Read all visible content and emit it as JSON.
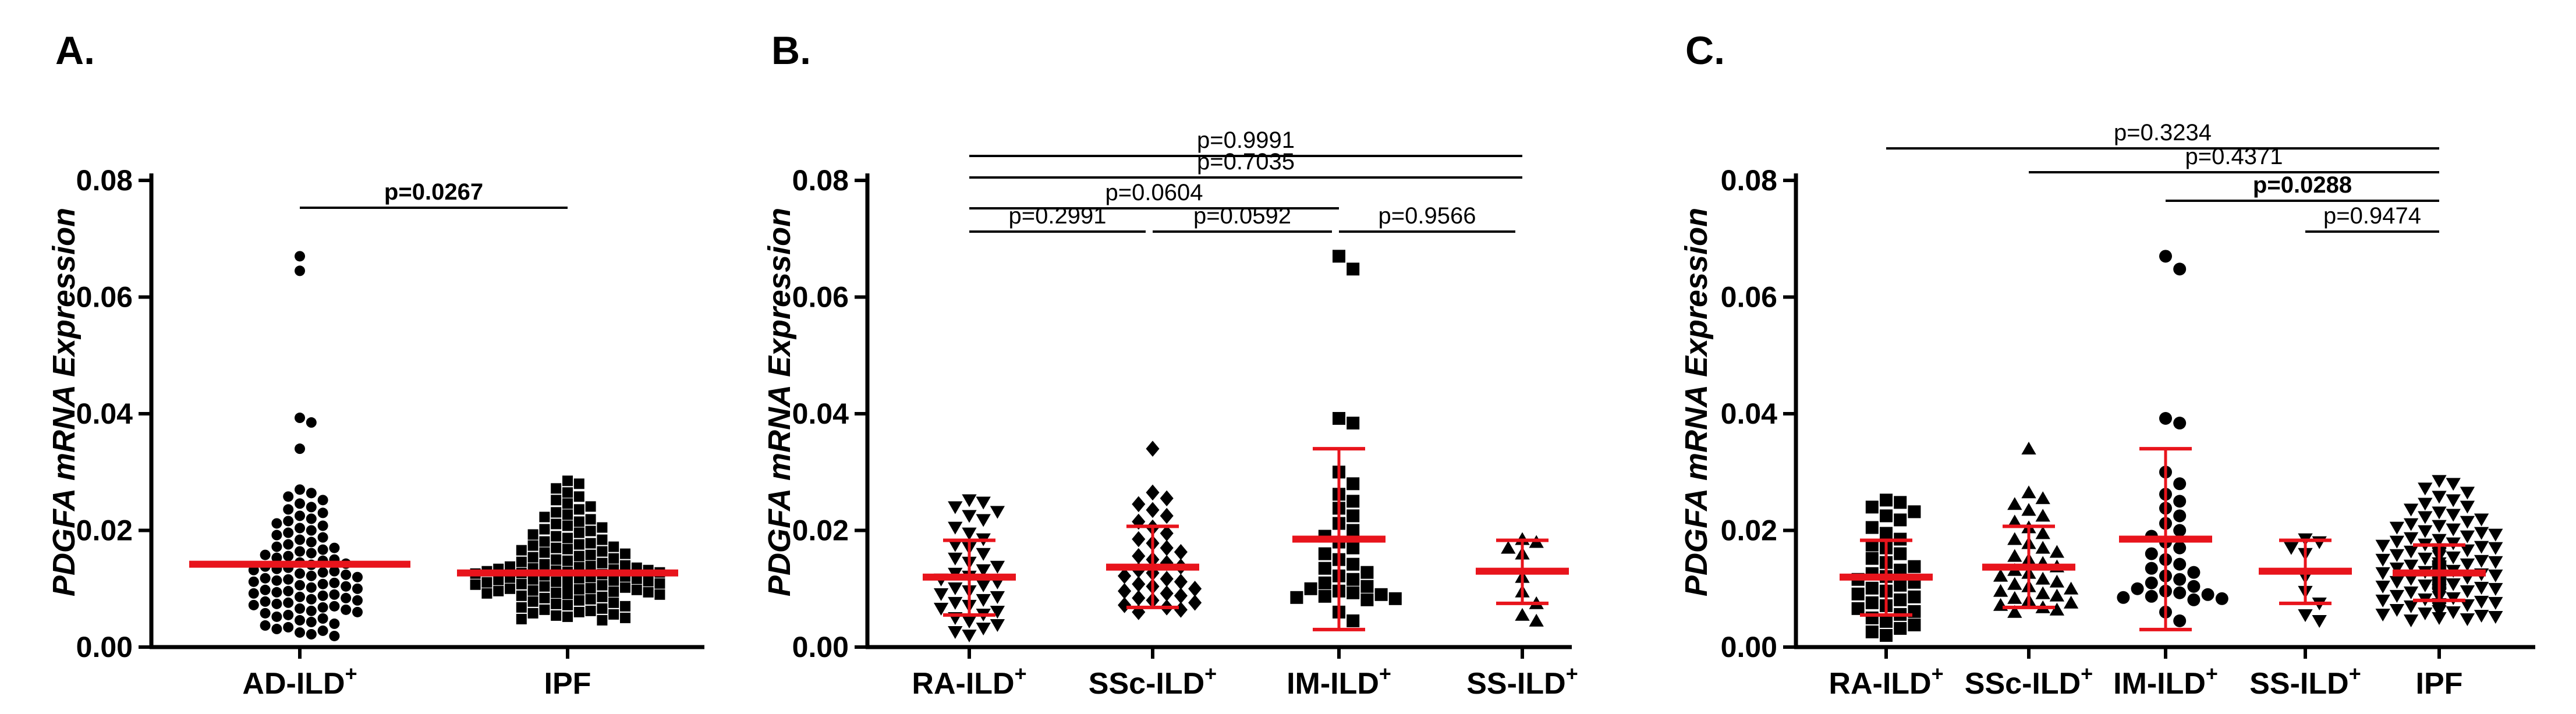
{
  "chart_data": [
    {
      "panel_label": "A.",
      "type": "scatter",
      "ylabel": "PDGFA mRNA Expression",
      "ylim": [
        0,
        0.08
      ],
      "yticks": [
        "0.00",
        "0.02",
        "0.04",
        "0.06",
        "0.08"
      ],
      "categories": [
        {
          "label": "AD-ILD",
          "sup": "+"
        },
        {
          "label": "IPF",
          "sup": ""
        }
      ],
      "series": [
        {
          "marker": "circle",
          "mean": 0.0142,
          "sd_low": null,
          "sd_high": null,
          "points": [
            0.067,
            0.0645,
            0.0393,
            0.0385,
            0.034,
            0.027,
            0.0264,
            0.0258,
            0.0252,
            0.0246,
            0.024,
            0.0236,
            0.023,
            0.0225,
            0.022,
            0.0216,
            0.0212,
            0.0208,
            0.0204,
            0.02,
            0.0196,
            0.0192,
            0.0188,
            0.0184,
            0.018,
            0.0176,
            0.0172,
            0.017,
            0.0167,
            0.0164,
            0.0161,
            0.0158,
            0.0156,
            0.0153,
            0.015,
            0.0148,
            0.0145,
            0.0143,
            0.0141,
            0.0138,
            0.0136,
            0.0134,
            0.0132,
            0.013,
            0.0128,
            0.0126,
            0.0124,
            0.0122,
            0.012,
            0.0118,
            0.0116,
            0.0114,
            0.0112,
            0.011,
            0.0108,
            0.0106,
            0.0104,
            0.0102,
            0.01,
            0.0098,
            0.0096,
            0.0094,
            0.0092,
            0.009,
            0.0088,
            0.0086,
            0.0084,
            0.0082,
            0.008,
            0.0078,
            0.0076,
            0.0074,
            0.0072,
            0.007,
            0.0068,
            0.0066,
            0.0064,
            0.0062,
            0.006,
            0.0058,
            0.0055,
            0.0052,
            0.0049,
            0.0046,
            0.0043,
            0.004,
            0.0037,
            0.0034,
            0.0031,
            0.0028,
            0.0025,
            0.0022,
            0.0019
          ]
        },
        {
          "marker": "square",
          "mean": 0.0127,
          "sd_low": null,
          "sd_high": null,
          "points": [
            0.0285,
            0.028,
            0.0272,
            0.0265,
            0.0258,
            0.0252,
            0.0246,
            0.0241,
            0.0236,
            0.0231,
            0.0227,
            0.0223,
            0.0219,
            0.0215,
            0.0211,
            0.0208,
            0.0205,
            0.0202,
            0.0199,
            0.0196,
            0.0193,
            0.019,
            0.0187,
            0.0184,
            0.0181,
            0.0178,
            0.0176,
            0.0174,
            0.0172,
            0.017,
            0.0168,
            0.0166,
            0.0164,
            0.0162,
            0.016,
            0.0158,
            0.0156,
            0.0154,
            0.0152,
            0.015,
            0.0148,
            0.0146,
            0.0144,
            0.0142,
            0.014,
            0.0139,
            0.0138,
            0.0137,
            0.0136,
            0.0135,
            0.0134,
            0.0133,
            0.0132,
            0.0131,
            0.013,
            0.0129,
            0.0128,
            0.0127,
            0.0126,
            0.0125,
            0.0124,
            0.0123,
            0.0122,
            0.0121,
            0.012,
            0.0119,
            0.0118,
            0.0117,
            0.0116,
            0.0115,
            0.0114,
            0.0113,
            0.0112,
            0.0111,
            0.011,
            0.0109,
            0.0108,
            0.0107,
            0.0106,
            0.0105,
            0.0104,
            0.0103,
            0.0102,
            0.0101,
            0.01,
            0.0099,
            0.0098,
            0.0097,
            0.0096,
            0.0095,
            0.0094,
            0.0093,
            0.0092,
            0.0091,
            0.009,
            0.0088,
            0.0086,
            0.0084,
            0.0082,
            0.008,
            0.0078,
            0.0076,
            0.0074,
            0.0072,
            0.007,
            0.0068,
            0.0066,
            0.0064,
            0.0062,
            0.006,
            0.0058,
            0.0056,
            0.0054,
            0.0052,
            0.005,
            0.0048,
            0.0046
          ]
        }
      ],
      "comparisons": [
        {
          "from": 0,
          "to": 1,
          "level": 0,
          "label": "p=0.0267",
          "bold": true
        }
      ]
    },
    {
      "panel_label": "B.",
      "type": "scatter",
      "ylabel": "PDGFA mRNA Expression",
      "ylim": [
        0,
        0.08
      ],
      "yticks": [
        "0.00",
        "0.02",
        "0.04",
        "0.06",
        "0.08"
      ],
      "categories": [
        {
          "label": "RA-ILD",
          "sup": "+"
        },
        {
          "label": "SSc-ILD",
          "sup": "+"
        },
        {
          "label": "IM-ILD",
          "sup": "+"
        },
        {
          "label": "SS-ILD",
          "sup": "+"
        }
      ],
      "series": [
        {
          "marker": "triangle-down",
          "mean": 0.012,
          "sd_low": 0.0055,
          "sd_high": 0.0183,
          "points": [
            0.0252,
            0.0248,
            0.024,
            0.0232,
            0.0225,
            0.0218,
            0.0205,
            0.0195,
            0.0185,
            0.0175,
            0.017,
            0.016,
            0.0152,
            0.0145,
            0.0138,
            0.0132,
            0.0126,
            0.0121,
            0.0116,
            0.0111,
            0.0106,
            0.0101,
            0.0096,
            0.0091,
            0.0086,
            0.0081,
            0.0076,
            0.0071,
            0.0066,
            0.0061,
            0.0056,
            0.005,
            0.0044,
            0.0038,
            0.0032,
            0.0026,
            0.002
          ]
        },
        {
          "marker": "diamond",
          "mean": 0.0137,
          "sd_low": 0.0068,
          "sd_high": 0.0207,
          "points": [
            0.034,
            0.0265,
            0.0255,
            0.0245,
            0.0235,
            0.0225,
            0.0215,
            0.0205,
            0.0195,
            0.0185,
            0.0178,
            0.017,
            0.0163,
            0.0156,
            0.015,
            0.0144,
            0.0138,
            0.0132,
            0.0127,
            0.0122,
            0.0117,
            0.0112,
            0.0108,
            0.0104,
            0.01,
            0.0096,
            0.0092,
            0.0088,
            0.0084,
            0.008,
            0.0076,
            0.0072,
            0.0068,
            0.0064,
            0.006
          ]
        },
        {
          "marker": "square",
          "mean": 0.0185,
          "sd_low": 0.003,
          "sd_high": 0.034,
          "points": [
            0.067,
            0.0648,
            0.0392,
            0.0384,
            0.03,
            0.028,
            0.0262,
            0.025,
            0.0238,
            0.0225,
            0.0212,
            0.02,
            0.019,
            0.018,
            0.017,
            0.016,
            0.015,
            0.0142,
            0.0135,
            0.0128,
            0.0122,
            0.0116,
            0.011,
            0.0104,
            0.01,
            0.0096,
            0.0093,
            0.009,
            0.0087,
            0.0085,
            0.0083,
            0.0081,
            0.006,
            0.0045
          ]
        },
        {
          "marker": "triangle-up",
          "mean": 0.013,
          "sd_low": 0.0075,
          "sd_high": 0.0183,
          "points": [
            0.0185,
            0.018,
            0.017,
            0.016,
            0.012,
            0.0095,
            0.0075,
            0.0055,
            0.0045
          ]
        }
      ],
      "comparisons": [
        {
          "from": 0,
          "to": 3,
          "level": 4,
          "label": "p=0.9991",
          "bold": false
        },
        {
          "from": 0,
          "to": 3,
          "level": 3,
          "label": "p=0.7035",
          "bold": false
        },
        {
          "from": 0,
          "to": 2,
          "level": 2,
          "label": "p=0.0604",
          "bold": false
        },
        {
          "from": 0,
          "to": 1,
          "level": 1,
          "label": "p=0.2991",
          "bold": false
        },
        {
          "from": 1,
          "to": 2,
          "level": 1,
          "label": "p=0.0592",
          "bold": false
        },
        {
          "from": 2,
          "to": 3,
          "level": 1,
          "label": "p=0.9566",
          "bold": false
        }
      ]
    },
    {
      "panel_label": "C.",
      "type": "scatter",
      "ylabel": "PDGFA mRNA Expression",
      "ylim": [
        0,
        0.08
      ],
      "yticks": [
        "0.00",
        "0.02",
        "0.04",
        "0.06",
        "0.08"
      ],
      "categories": [
        {
          "label": "RA-ILD",
          "sup": "+"
        },
        {
          "label": "SSc-ILD",
          "sup": "+"
        },
        {
          "label": "IM-ILD",
          "sup": "+"
        },
        {
          "label": "SS-ILD",
          "sup": "+"
        },
        {
          "label": "IPF",
          "sup": ""
        }
      ],
      "series": [
        {
          "marker": "square",
          "mean": 0.012,
          "sd_low": 0.0055,
          "sd_high": 0.0183,
          "points": [
            0.0252,
            0.0248,
            0.024,
            0.0232,
            0.0225,
            0.0218,
            0.0205,
            0.0195,
            0.0185,
            0.0175,
            0.017,
            0.016,
            0.0152,
            0.0145,
            0.0138,
            0.0132,
            0.0126,
            0.0121,
            0.0116,
            0.0111,
            0.0106,
            0.0101,
            0.0096,
            0.0091,
            0.0086,
            0.0081,
            0.0076,
            0.0071,
            0.0066,
            0.0061,
            0.0056,
            0.005,
            0.0044,
            0.0038,
            0.0032,
            0.0026,
            0.002
          ]
        },
        {
          "marker": "triangle-up",
          "mean": 0.0137,
          "sd_low": 0.0068,
          "sd_high": 0.0207,
          "points": [
            0.034,
            0.0265,
            0.0255,
            0.0245,
            0.0235,
            0.0225,
            0.0215,
            0.0205,
            0.0195,
            0.0185,
            0.0178,
            0.017,
            0.0163,
            0.0156,
            0.015,
            0.0144,
            0.0138,
            0.0132,
            0.0127,
            0.0122,
            0.0117,
            0.0112,
            0.0108,
            0.0104,
            0.01,
            0.0096,
            0.0092,
            0.0088,
            0.0084,
            0.008,
            0.0076,
            0.0072,
            0.0068,
            0.0064,
            0.006
          ]
        },
        {
          "marker": "circle",
          "mean": 0.0185,
          "sd_low": 0.003,
          "sd_high": 0.034,
          "points": [
            0.067,
            0.0648,
            0.0392,
            0.0384,
            0.03,
            0.028,
            0.0262,
            0.025,
            0.0238,
            0.0225,
            0.0212,
            0.02,
            0.019,
            0.018,
            0.017,
            0.016,
            0.015,
            0.0142,
            0.0135,
            0.0128,
            0.0122,
            0.0116,
            0.011,
            0.0104,
            0.01,
            0.0096,
            0.0093,
            0.009,
            0.0087,
            0.0085,
            0.0083,
            0.0081,
            0.006,
            0.0045
          ]
        },
        {
          "marker": "triangle-down",
          "mean": 0.013,
          "sd_low": 0.0075,
          "sd_high": 0.0183,
          "points": [
            0.0185,
            0.018,
            0.017,
            0.016,
            0.012,
            0.0095,
            0.0075,
            0.0055,
            0.0045
          ]
        },
        {
          "marker": "triangle-down",
          "mean": 0.0127,
          "sd_low": 0.008,
          "sd_high": 0.0175,
          "points": [
            0.0285,
            0.028,
            0.0272,
            0.0265,
            0.0258,
            0.0252,
            0.0246,
            0.0241,
            0.0236,
            0.0231,
            0.0227,
            0.0223,
            0.0219,
            0.0215,
            0.0211,
            0.0208,
            0.0205,
            0.0202,
            0.0199,
            0.0196,
            0.0193,
            0.019,
            0.0187,
            0.0184,
            0.0181,
            0.0178,
            0.0176,
            0.0174,
            0.0172,
            0.017,
            0.0168,
            0.0166,
            0.0164,
            0.0162,
            0.016,
            0.0158,
            0.0156,
            0.0154,
            0.0152,
            0.015,
            0.0148,
            0.0146,
            0.0144,
            0.0142,
            0.014,
            0.0139,
            0.0138,
            0.0137,
            0.0136,
            0.0135,
            0.0134,
            0.0133,
            0.0132,
            0.0131,
            0.013,
            0.0129,
            0.0128,
            0.0127,
            0.0126,
            0.0125,
            0.0124,
            0.0123,
            0.0122,
            0.0121,
            0.012,
            0.0119,
            0.0118,
            0.0117,
            0.0116,
            0.0115,
            0.0114,
            0.0113,
            0.0112,
            0.0111,
            0.011,
            0.0109,
            0.0108,
            0.0107,
            0.0106,
            0.0105,
            0.0104,
            0.0103,
            0.0102,
            0.0101,
            0.01,
            0.0099,
            0.0098,
            0.0097,
            0.0096,
            0.0095,
            0.0094,
            0.0093,
            0.0092,
            0.0091,
            0.009,
            0.0088,
            0.0086,
            0.0084,
            0.0082,
            0.008,
            0.0078,
            0.0076,
            0.0074,
            0.0072,
            0.007,
            0.0068,
            0.0066,
            0.0064,
            0.0062,
            0.006,
            0.0058,
            0.0056,
            0.0054,
            0.0052,
            0.005,
            0.0048,
            0.0046
          ]
        }
      ],
      "comparisons": [
        {
          "from": 0,
          "to": 4,
          "level": 4,
          "label": "p=0.3234",
          "bold": false
        },
        {
          "from": 1,
          "to": 4,
          "level": 3,
          "label": "p=0.4371",
          "bold": false
        },
        {
          "from": 2,
          "to": 4,
          "level": 2,
          "label": "p=0.0288",
          "bold": true
        },
        {
          "from": 3,
          "to": 4,
          "level": 1,
          "label": "p=0.9474",
          "bold": false
        }
      ]
    }
  ],
  "colors": {
    "points": "#000000",
    "axis": "#000000",
    "mean_line": "#e8141c",
    "error_bar": "#e8141c",
    "bracket": "#000000"
  }
}
